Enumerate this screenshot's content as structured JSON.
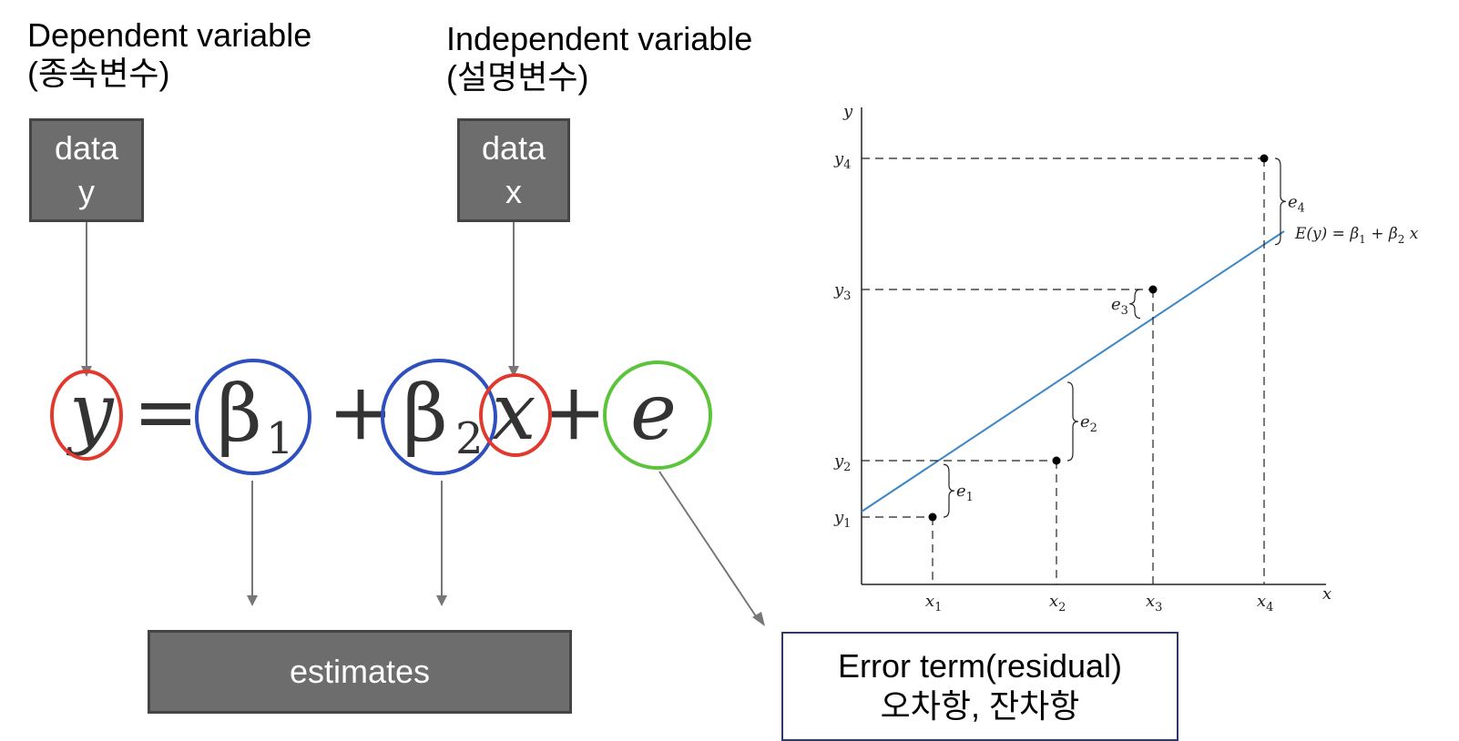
{
  "labels": {
    "dependent_en": "Dependent variable",
    "dependent_ko": "(종속변수)",
    "independent_en": "Independent variable",
    "independent_ko": "(설명변수)"
  },
  "boxes": {
    "data_y": {
      "line1": "data",
      "line2": "y"
    },
    "data_x": {
      "line1": "data",
      "line2": "x"
    },
    "estimates": "estimates"
  },
  "equation": {
    "y": "y",
    "equals": "=",
    "b1": "β",
    "b1_sub": "1",
    "plus1": "+",
    "b2": "β",
    "b2_sub": "2",
    "x": "x",
    "plus2": "+",
    "e": "e"
  },
  "error_box": {
    "line1": "Error term(residual)",
    "line2": "오차항, 잔차항"
  },
  "graph": {
    "y_axis_label": "y",
    "x_axis_label": "x",
    "line_label": "E(y) = β",
    "line_label_sub1": "1",
    "line_label_mid": " + β",
    "line_label_sub2": "2",
    "line_label_end": " x",
    "y_ticks": [
      {
        "t": "y",
        "s": "4"
      },
      {
        "t": "y",
        "s": "3"
      },
      {
        "t": "y",
        "s": "2"
      },
      {
        "t": "y",
        "s": "1"
      }
    ],
    "x_ticks": [
      {
        "t": "x",
        "s": "1"
      },
      {
        "t": "x",
        "s": "2"
      },
      {
        "t": "x",
        "s": "3"
      },
      {
        "t": "x",
        "s": "4"
      }
    ],
    "residuals": [
      {
        "t": "e",
        "s": "1"
      },
      {
        "t": "e",
        "s": "2"
      },
      {
        "t": "e",
        "s": "3"
      },
      {
        "t": "e",
        "s": "4"
      }
    ],
    "colors": {
      "line": "#3a86c8",
      "points": "#000000"
    }
  },
  "colors": {
    "red_circle": "#e03a2f",
    "blue_circle": "#2f4fc0",
    "green_circle": "#5cc43a",
    "box_fill": "#6d6d6d"
  }
}
